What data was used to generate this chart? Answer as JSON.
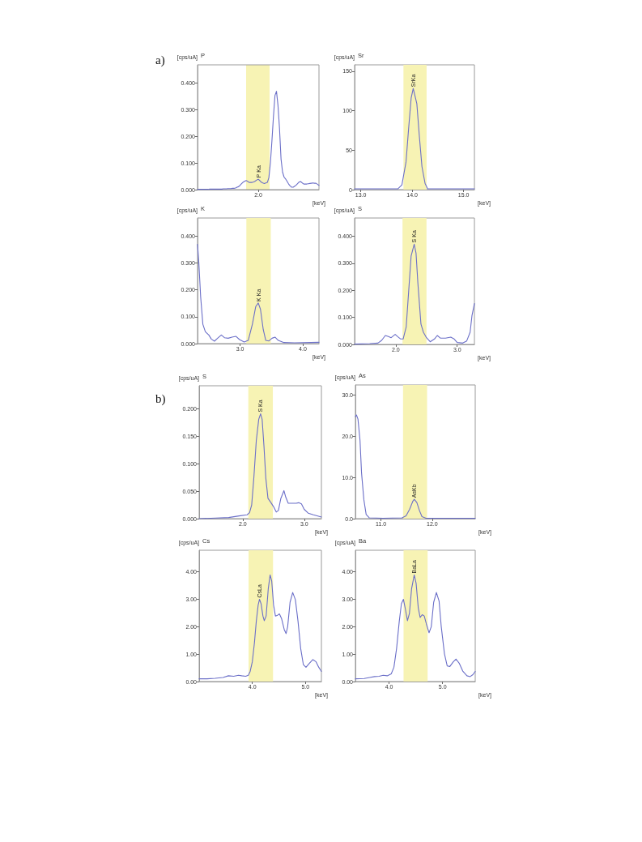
{
  "chart_data": [
    {
      "type": "line",
      "title": "P",
      "ylabel": "[cps/uA]",
      "xlabel": "[keV]",
      "annotations": [
        "a)",
        {
          "text": "P Ka",
          "x": "2.0",
          "y": 0.039
        }
      ],
      "categories": [
        null,
        null,
        null,
        null,
        null,
        null,
        null,
        null,
        null,
        null,
        null,
        null,
        null,
        null,
        null,
        null,
        null,
        null,
        null,
        null,
        null,
        null,
        null,
        null,
        null,
        null,
        null,
        null,
        null,
        null,
        null,
        null,
        null,
        null,
        null,
        null,
        null,
        null,
        null,
        null,
        "2.0",
        null,
        null,
        null,
        null,
        null,
        null,
        null,
        null,
        null,
        null,
        null,
        null,
        null,
        null,
        null,
        null,
        null,
        null,
        null,
        null,
        null,
        null,
        null,
        null,
        null,
        null,
        null,
        null,
        null,
        null,
        null,
        null,
        null,
        null,
        null,
        null,
        null,
        null,
        null,
        null
      ],
      "values": [
        0.001,
        0.001,
        0.001,
        0.001,
        0.001,
        0.001,
        0.001,
        0.001,
        0.002,
        0.002,
        0.002,
        0.002,
        0.002,
        0.002,
        0.002,
        0.002,
        0.002,
        0.003,
        0.003,
        0.003,
        0.004,
        0.004,
        0.004,
        0.005,
        0.005,
        0.006,
        0.009,
        0.011,
        0.016,
        0.022,
        0.028,
        0.031,
        0.034,
        0.031,
        0.027,
        0.027,
        0.027,
        0.029,
        0.032,
        0.036,
        0.039,
        0.034,
        0.028,
        0.025,
        0.023,
        0.025,
        0.027,
        0.045,
        0.1,
        0.182,
        0.273,
        0.352,
        0.368,
        0.315,
        0.229,
        0.115,
        0.066,
        0.047,
        0.04,
        0.031,
        0.021,
        0.014,
        0.009,
        0.009,
        0.013,
        0.017,
        0.023,
        0.029,
        0.03,
        0.025,
        0.021,
        0.021,
        0.021,
        0.022,
        0.023,
        0.024,
        0.025,
        0.024,
        0.024,
        0.02,
        0.016
      ],
      "color": "#6b6fc8",
      "ylim": [
        0,
        0.467
      ],
      "yticks": [
        {
          "value": 0,
          "label": "0.000"
        },
        {
          "value": 0.1,
          "label": "0.100"
        },
        {
          "value": 0.2,
          "label": "0.200"
        },
        {
          "value": 0.3,
          "label": "0.300"
        },
        {
          "value": 0.4,
          "label": "0.400"
        }
      ]
    },
    {
      "type": "line",
      "title": "Sr",
      "ylabel": "[cps/uA]",
      "xlabel": "[keV]",
      "annotations": [
        {
          "text": "SrKa",
          "x": 14.02,
          "y": 128
        }
      ],
      "x": [
        12.88,
        13.5,
        13.72,
        13.8,
        13.88,
        13.93,
        13.98,
        14.02,
        14.09,
        14.14,
        14.19,
        14.25,
        14.3,
        14.4,
        15.21
      ],
      "values": [
        1,
        1,
        1,
        6,
        35,
        77,
        116,
        128,
        109,
        67,
        29,
        8,
        1,
        1,
        1
      ],
      "color": "#6b6fc8",
      "xlim": [
        12.88,
        15.21
      ],
      "xticks": [
        {
          "value": 13,
          "label": "13.0"
        },
        {
          "value": 14,
          "label": "14.0"
        },
        {
          "value": 15,
          "label": "15.0"
        }
      ],
      "ylim": [
        0,
        158
      ],
      "yticks": [
        0,
        50,
        100,
        150
      ],
      "bands": [
        {
          "axis": "x",
          "from": 13.83,
          "to": 14.28,
          "color": "#f7f3b4"
        }
      ]
    },
    {
      "type": "line",
      "title": "K",
      "ylabel": "[cps/uA]",
      "xlabel": "[keV]",
      "annotations": [
        {
          "text": "K Ka",
          "x": 3.29,
          "y": 0.151
        }
      ],
      "x": [
        2.32,
        2.34,
        2.37,
        2.405,
        2.445,
        2.5,
        2.54,
        2.59,
        2.64,
        2.7,
        2.75,
        2.81,
        2.87,
        2.935,
        2.99,
        3.065,
        3.13,
        3.196,
        3.25,
        3.29,
        3.325,
        3.37,
        3.41,
        3.46,
        3.51,
        3.56,
        3.61,
        3.7,
        3.87,
        4.13,
        4.26
      ],
      "values": [
        0.369,
        0.303,
        0.173,
        0.072,
        0.044,
        0.032,
        0.017,
        0.009,
        0.02,
        0.032,
        0.022,
        0.02,
        0.024,
        0.027,
        0.015,
        0.006,
        0.012,
        0.072,
        0.138,
        0.151,
        0.128,
        0.052,
        0.012,
        0.01,
        0.02,
        0.024,
        0.012,
        0.004,
        0.003,
        0.004,
        0.005
      ],
      "color": "#6b6fc8",
      "xlim": [
        2.32,
        4.26
      ],
      "xticks": [
        {
          "value": 3,
          "label": "3.0"
        },
        {
          "value": 4,
          "label": "4.0"
        }
      ],
      "ylim": [
        0,
        0.467
      ],
      "yticks": [
        {
          "value": 0,
          "label": "0.000"
        },
        {
          "value": 0.1,
          "label": "0.100"
        },
        {
          "value": 0.2,
          "label": "0.200"
        },
        {
          "value": 0.3,
          "label": "0.300"
        },
        {
          "value": 0.4,
          "label": "0.400"
        }
      ],
      "bands": [
        {
          "axis": "x",
          "from": 3.1,
          "to": 3.49,
          "color": "#f7f3b4"
        }
      ]
    },
    {
      "type": "line",
      "title": "S",
      "ylabel": "[cps/uA]",
      "xlabel": "[keV]",
      "annotations": [
        {
          "text": "S Ka",
          "x": 2.3,
          "y": 0.37
        }
      ],
      "x": [
        1.33,
        1.575,
        1.71,
        1.77,
        1.83,
        1.88,
        1.925,
        1.99,
        2.035,
        2.08,
        2.12,
        2.17,
        2.21,
        2.25,
        2.3,
        2.33,
        2.36,
        2.41,
        2.45,
        2.5,
        2.56,
        2.63,
        2.675,
        2.73,
        2.81,
        2.895,
        2.95,
        3.0,
        3.09,
        3.155,
        3.21,
        3.24,
        3.28
      ],
      "values": [
        0.001,
        0.003,
        0.005,
        0.015,
        0.033,
        0.029,
        0.025,
        0.037,
        0.028,
        0.02,
        0.02,
        0.065,
        0.196,
        0.327,
        0.37,
        0.337,
        0.226,
        0.075,
        0.045,
        0.025,
        0.01,
        0.02,
        0.033,
        0.023,
        0.023,
        0.027,
        0.02,
        0.007,
        0.005,
        0.013,
        0.045,
        0.106,
        0.151
      ],
      "color": "#6b6fc8",
      "xlim": [
        1.33,
        3.28
      ],
      "xticks": [
        {
          "value": 2,
          "label": "2.0"
        },
        {
          "value": 3,
          "label": "3.0"
        }
      ],
      "ylim": [
        0,
        0.467
      ],
      "yticks": [
        {
          "value": 0,
          "label": "0.000"
        },
        {
          "value": 0.1,
          "label": "0.100"
        },
        {
          "value": 0.2,
          "label": "0.200"
        },
        {
          "value": 0.3,
          "label": "0.300"
        },
        {
          "value": 0.4,
          "label": "0.400"
        }
      ],
      "bands": [
        {
          "axis": "x",
          "from": 2.11,
          "to": 2.5,
          "color": "#f7f3b4"
        }
      ]
    },
    {
      "type": "line",
      "title": "S",
      "ylabel": "[cps/uA]",
      "xlabel": "[keV]",
      "annotations": [
        "b)",
        {
          "text": "S Ka",
          "x": 2.29,
          "y": 0.191
        }
      ],
      "x": [
        1.29,
        1.56,
        1.77,
        1.94,
        2.07,
        2.11,
        2.145,
        2.18,
        2.22,
        2.26,
        2.29,
        2.315,
        2.345,
        2.375,
        2.41,
        2.46,
        2.5,
        2.545,
        2.58,
        2.62,
        2.67,
        2.7,
        2.74,
        2.805,
        2.87,
        2.91,
        2.955,
        3.0,
        3.065,
        3.15,
        3.28
      ],
      "values": [
        0.0,
        0.001,
        0.002,
        0.005,
        0.007,
        0.011,
        0.025,
        0.074,
        0.142,
        0.181,
        0.191,
        0.181,
        0.132,
        0.074,
        0.037,
        0.029,
        0.022,
        0.012,
        0.015,
        0.037,
        0.051,
        0.039,
        0.028,
        0.028,
        0.028,
        0.029,
        0.027,
        0.017,
        0.01,
        0.007,
        0.003
      ],
      "color": "#6b6fc8",
      "xlim": [
        1.29,
        3.28
      ],
      "xticks": [
        {
          "value": 2,
          "label": "2.0"
        },
        {
          "value": 3,
          "label": "3.0"
        }
      ],
      "ylim": [
        0,
        0.242
      ],
      "yticks": [
        {
          "value": 0,
          "label": "0.000"
        },
        {
          "value": 0.05,
          "label": "0.050"
        },
        {
          "value": 0.1,
          "label": "0.100"
        },
        {
          "value": 0.15,
          "label": "0.150"
        },
        {
          "value": 0.2,
          "label": "0.200"
        }
      ],
      "bands": [
        {
          "axis": "x",
          "from": 2.09,
          "to": 2.49,
          "color": "#f7f3b4"
        }
      ]
    },
    {
      "type": "line",
      "title": "As",
      "ylabel": "[cps/uA]",
      "xlabel": "[keV]",
      "annotations": [
        {
          "text": "AsKb",
          "x": 11.65,
          "y": 4.7
        }
      ],
      "x": [
        10.5,
        10.52,
        10.55,
        10.59,
        10.62,
        10.665,
        10.71,
        10.77,
        11.04,
        11.41,
        11.49,
        11.56,
        11.62,
        11.65,
        11.7,
        11.75,
        11.8,
        11.88,
        12.84
      ],
      "values": [
        24.8,
        25.2,
        24.2,
        19.0,
        11.1,
        4.6,
        1.0,
        0.2,
        0.1,
        0.2,
        0.7,
        2.3,
        4.2,
        4.7,
        3.9,
        2.0,
        0.5,
        0.1,
        0.1
      ],
      "color": "#6b6fc8",
      "xlim": [
        10.5,
        12.84
      ],
      "xticks": [
        {
          "value": 11,
          "label": "11.0"
        },
        {
          "value": 12,
          "label": "12.0"
        }
      ],
      "ylim": [
        0,
        32.5
      ],
      "yticks": [
        {
          "value": 0,
          "label": "0.0"
        },
        {
          "value": 10,
          "label": "10.0"
        },
        {
          "value": 20,
          "label": "20.0"
        },
        {
          "value": 30,
          "label": "30.0"
        }
      ],
      "bands": [
        {
          "axis": "x",
          "from": 11.43,
          "to": 11.9,
          "color": "#f7f3b4"
        }
      ]
    },
    {
      "type": "line",
      "title": "Cs",
      "ylabel": "[cps/uA]",
      "xlabel": "[keV]",
      "annotations": [
        {
          "text": "CsLa",
          "x": 4.135,
          "y": 3.0
        }
      ],
      "x": [
        3.0,
        3.15,
        3.3,
        3.45,
        3.55,
        3.65,
        3.74,
        3.8,
        3.875,
        3.925,
        3.96,
        4.0,
        4.04,
        4.075,
        4.11,
        4.135,
        4.165,
        4.2,
        4.225,
        4.26,
        4.3,
        4.335,
        4.365,
        4.4,
        4.435,
        4.475,
        4.51,
        4.55,
        4.6,
        4.635,
        4.665,
        4.71,
        4.76,
        4.81,
        4.86,
        4.91,
        4.96,
        5.01,
        5.075,
        5.14,
        5.2,
        5.25,
        5.3
      ],
      "values": [
        0.1,
        0.1,
        0.12,
        0.15,
        0.21,
        0.19,
        0.23,
        0.21,
        0.19,
        0.23,
        0.37,
        0.72,
        1.41,
        2.2,
        2.79,
        3.0,
        2.84,
        2.39,
        2.22,
        2.39,
        3.38,
        3.89,
        3.67,
        2.79,
        2.39,
        2.42,
        2.47,
        2.3,
        1.9,
        1.75,
        2.0,
        2.89,
        3.25,
        2.99,
        2.2,
        1.21,
        0.62,
        0.52,
        0.67,
        0.8,
        0.72,
        0.52,
        0.37
      ],
      "color": "#6b6fc8",
      "xlim": [
        3.0,
        5.3
      ],
      "xticks": [
        {
          "value": 4,
          "label": "4.0"
        },
        {
          "value": 5,
          "label": "5.0"
        }
      ],
      "ylim": [
        0,
        4.79
      ],
      "yticks": [
        {
          "value": 0,
          "label": "0.00"
        },
        {
          "value": 1,
          "label": "1.00"
        },
        {
          "value": 2,
          "label": "2.00"
        },
        {
          "value": 3,
          "label": "3.00"
        },
        {
          "value": 4,
          "label": "4.00"
        }
      ],
      "bands": [
        {
          "axis": "x",
          "from": 3.93,
          "to": 4.39,
          "color": "#f7f3b4"
        }
      ]
    },
    {
      "type": "line",
      "title": "Ba",
      "ylabel": "[cps/uA]",
      "xlabel": "[keV]",
      "annotations": [
        {
          "text": "BaLa",
          "x": 4.47,
          "y": 3.89
        }
      ],
      "x": [
        3.37,
        3.535,
        3.636,
        3.727,
        3.813,
        3.889,
        3.965,
        4.04,
        4.09,
        4.14,
        4.19,
        4.23,
        4.268,
        4.3,
        4.343,
        4.38,
        4.42,
        4.47,
        4.505,
        4.545,
        4.58,
        4.62,
        4.657,
        4.697,
        4.747,
        4.788,
        4.833,
        4.884,
        4.934,
        4.975,
        5.035,
        5.086,
        5.136,
        5.2,
        5.25,
        5.31,
        5.38,
        5.455,
        5.515,
        5.566,
        5.61
      ],
      "values": [
        0.1,
        0.11,
        0.15,
        0.18,
        0.19,
        0.23,
        0.21,
        0.28,
        0.52,
        1.21,
        2.2,
        2.84,
        3.0,
        2.69,
        2.22,
        2.49,
        3.38,
        3.89,
        3.58,
        2.69,
        2.34,
        2.44,
        2.39,
        2.1,
        1.78,
        2.0,
        2.89,
        3.25,
        2.94,
        2.0,
        1.01,
        0.57,
        0.55,
        0.72,
        0.82,
        0.67,
        0.37,
        0.21,
        0.18,
        0.25,
        0.37
      ],
      "color": "#6b6fc8",
      "xlim": [
        3.37,
        5.61
      ],
      "xticks": [
        {
          "value": 4,
          "label": "4.0"
        },
        {
          "value": 5,
          "label": "5.0"
        }
      ],
      "ylim": [
        0,
        4.79
      ],
      "yticks": [
        {
          "value": 0,
          "label": "0.00"
        },
        {
          "value": 1,
          "label": "1.00"
        },
        {
          "value": 2,
          "label": "2.00"
        },
        {
          "value": 3,
          "label": "3.00"
        },
        {
          "value": 4,
          "label": "4.00"
        }
      ],
      "bands": [
        {
          "axis": "x",
          "from": 4.27,
          "to": 4.72,
          "color": "#f7f3b4"
        }
      ]
    }
  ]
}
